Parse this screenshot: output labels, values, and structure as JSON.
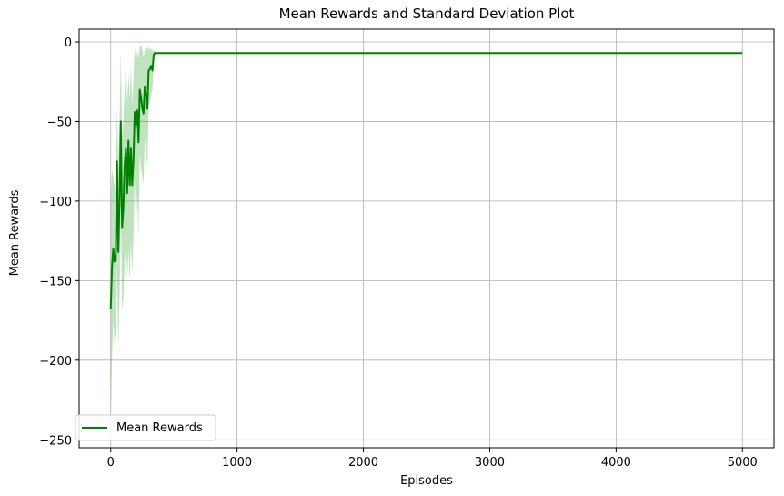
{
  "chart_data": {
    "type": "line",
    "title": "Mean Rewards and Standard Deviation Plot",
    "xlabel": "Episodes",
    "ylabel": "Mean Rewards",
    "xlim": [
      -250,
      5250
    ],
    "ylim": [
      -255,
      8
    ],
    "xticks": [
      0,
      1000,
      2000,
      3000,
      4000,
      5000
    ],
    "yticks": [
      0,
      -50,
      -100,
      -150,
      -200,
      -250
    ],
    "xtick_labels": [
      "0",
      "1000",
      "2000",
      "3000",
      "4000",
      "5000"
    ],
    "ytick_labels": [
      "0",
      "−50",
      "−100",
      "−150",
      "−200",
      "−250"
    ],
    "grid": true,
    "legend_position": "lower-left",
    "series": [
      {
        "name": "Mean Rewards",
        "color": "#008000",
        "band_color": "#2ca02c",
        "x": [
          0,
          10,
          20,
          30,
          40,
          50,
          60,
          70,
          80,
          90,
          100,
          110,
          120,
          130,
          140,
          150,
          160,
          170,
          180,
          190,
          200,
          210,
          220,
          230,
          240,
          250,
          260,
          270,
          280,
          290,
          300,
          310,
          320,
          330,
          340,
          350,
          400,
          500,
          1000,
          2000,
          3000,
          4000,
          5000
        ],
        "values": [
          -168,
          -142,
          -130,
          -138,
          -137,
          -75,
          -132,
          -100,
          -50,
          -117,
          -105,
          -78,
          -67,
          -95,
          -62,
          -90,
          -67,
          -90,
          -75,
          -44,
          -52,
          -43,
          -63,
          -30,
          -35,
          -42,
          -45,
          -28,
          -33,
          -42,
          -18,
          -17,
          -15,
          -18,
          -8,
          -7,
          -7,
          -7,
          -7,
          -7,
          -7,
          -7,
          -7
        ],
        "lower": [
          -240,
          -200,
          -175,
          -190,
          -180,
          -140,
          -195,
          -160,
          -95,
          -170,
          -160,
          -140,
          -125,
          -150,
          -130,
          -150,
          -125,
          -145,
          -125,
          -85,
          -120,
          -95,
          -123,
          -70,
          -80,
          -85,
          -90,
          -60,
          -70,
          -80,
          -40,
          -38,
          -33,
          -30,
          -12,
          -8,
          -7,
          -7,
          -7,
          -7,
          -7,
          -7,
          -7
        ],
        "upper": [
          -100,
          -80,
          -85,
          -90,
          -95,
          -40,
          -80,
          -50,
          -5,
          -60,
          -50,
          -30,
          -10,
          -40,
          -20,
          -35,
          -15,
          -40,
          -25,
          -2,
          -15,
          -5,
          -10,
          -3,
          -2,
          -5,
          -10,
          -5,
          -2,
          -5,
          -3,
          -5,
          -4,
          -6,
          -5,
          -6,
          -7,
          -7,
          -7,
          -7,
          -7,
          -7,
          -7
        ]
      }
    ]
  }
}
